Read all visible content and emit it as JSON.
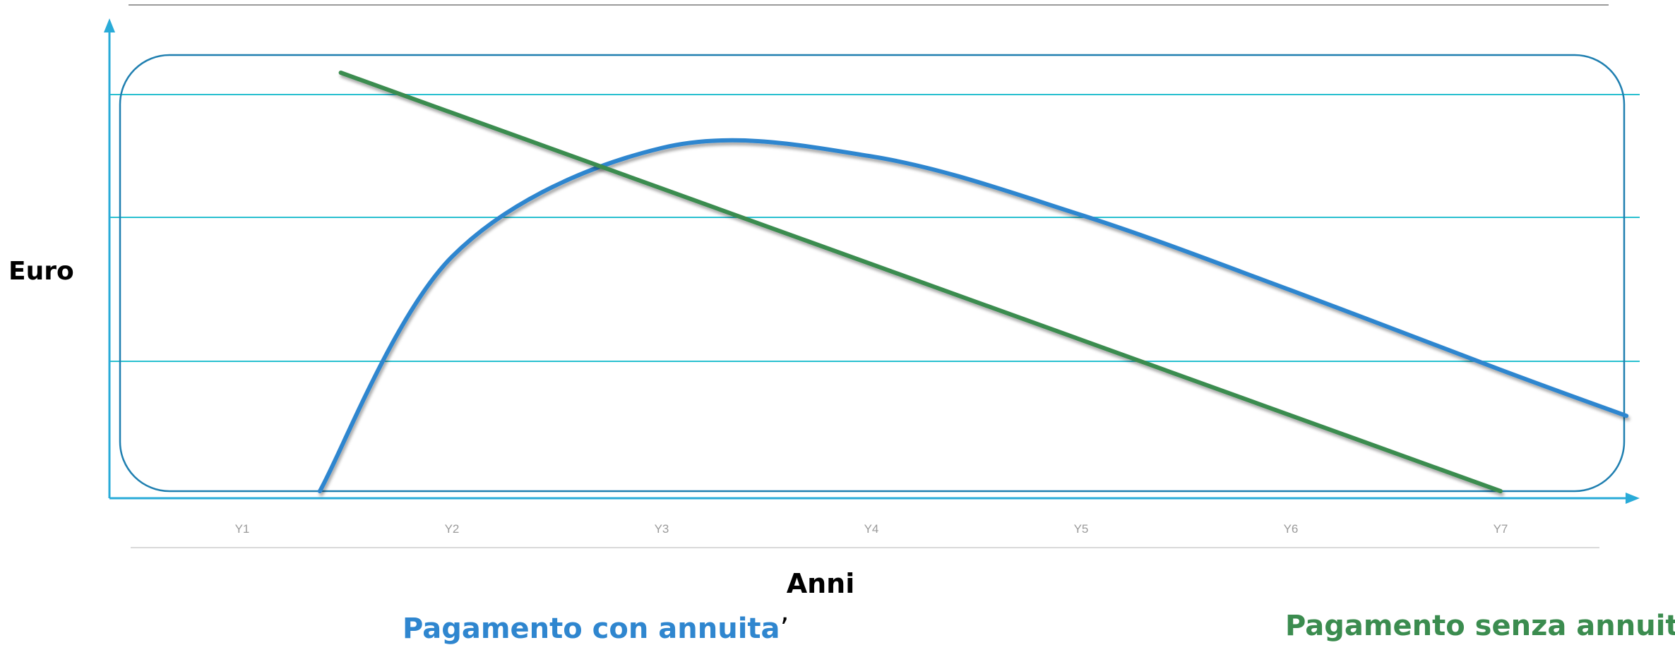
{
  "chart_data": {
    "type": "line",
    "xlabel": "Anni",
    "ylabel": "Euro",
    "categories": [
      "Y1",
      "Y2",
      "Y3",
      "Y4",
      "Y5",
      "Y6",
      "Y7"
    ],
    "grid": true,
    "legend_position": "bottom",
    "series": [
      {
        "name": "Pagamento con annuita",
        "name_suffix": "’",
        "color": "#2f86cf",
        "shape": "curve",
        "x": [
          0.37,
          1,
          2,
          3,
          4,
          5,
          6,
          6.6
        ],
        "y": [
          0.0,
          0.56,
          0.82,
          0.8,
          0.66,
          0.48,
          0.29,
          0.18
        ]
      },
      {
        "name": "Pagamento senza annuita",
        "name_suffix": "’",
        "color": "#3b8c4f",
        "shape": "straight",
        "x": [
          0.47,
          6.0
        ],
        "y": [
          1.0,
          0.0
        ]
      }
    ]
  },
  "colors": {
    "axis": "#29abd8",
    "grid": "#29c0d0",
    "frame": "#1f7fb0",
    "top_rule": "#9a9a9a"
  }
}
